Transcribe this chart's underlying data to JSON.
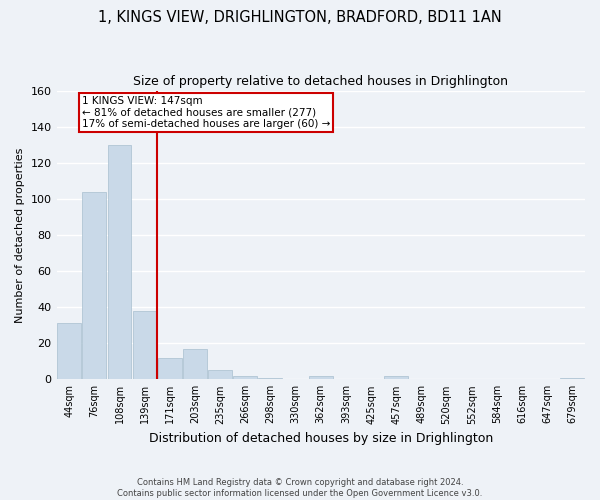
{
  "title": "1, KINGS VIEW, DRIGHLINGTON, BRADFORD, BD11 1AN",
  "subtitle": "Size of property relative to detached houses in Drighlington",
  "xlabel": "Distribution of detached houses by size in Drighlington",
  "ylabel": "Number of detached properties",
  "bar_labels": [
    "44sqm",
    "76sqm",
    "108sqm",
    "139sqm",
    "171sqm",
    "203sqm",
    "235sqm",
    "266sqm",
    "298sqm",
    "330sqm",
    "362sqm",
    "393sqm",
    "425sqm",
    "457sqm",
    "489sqm",
    "520sqm",
    "552sqm",
    "584sqm",
    "616sqm",
    "647sqm",
    "679sqm"
  ],
  "bar_values": [
    31,
    104,
    130,
    38,
    12,
    17,
    5,
    2,
    1,
    0,
    2,
    0,
    0,
    2,
    0,
    0,
    0,
    0,
    0,
    0,
    1
  ],
  "bar_color": "#c9d9e8",
  "bar_edge_color": "#a8bfcf",
  "property_line_label": "1 KINGS VIEW: 147sqm",
  "annotation_line1": "← 81% of detached houses are smaller (277)",
  "annotation_line2": "17% of semi-detached houses are larger (60) →",
  "annotation_box_color": "#ffffff",
  "annotation_box_edge_color": "#cc0000",
  "vline_color": "#cc0000",
  "ylim": [
    0,
    160
  ],
  "yticks": [
    0,
    20,
    40,
    60,
    80,
    100,
    120,
    140,
    160
  ],
  "background_color": "#eef2f7",
  "grid_color": "#ffffff",
  "footer_line1": "Contains HM Land Registry data © Crown copyright and database right 2024.",
  "footer_line2": "Contains public sector information licensed under the Open Government Licence v3.0."
}
